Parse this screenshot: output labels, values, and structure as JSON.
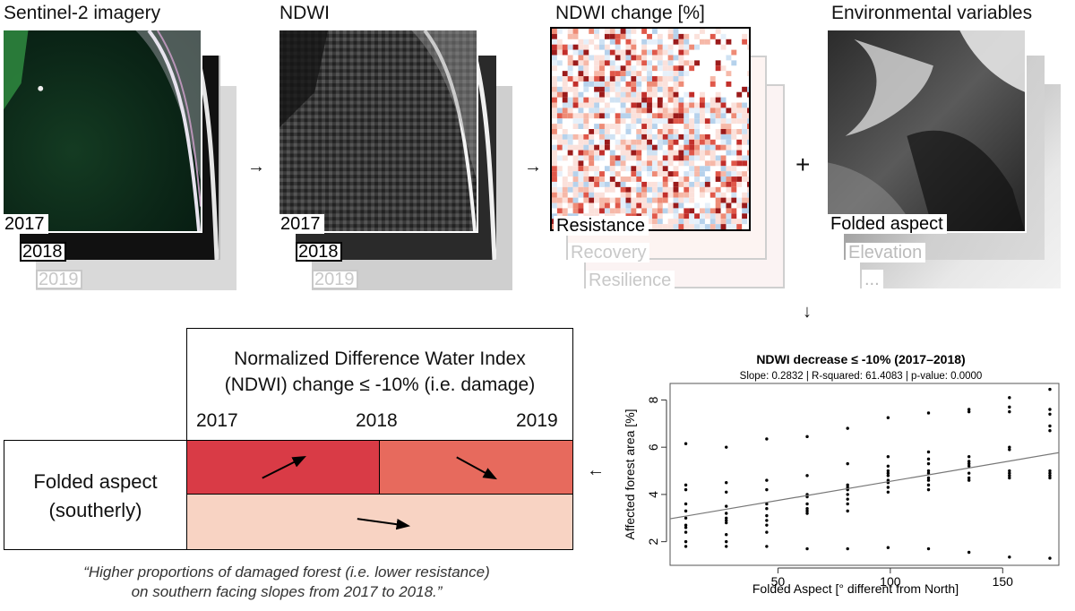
{
  "panels": {
    "sentinel": {
      "title": "Sentinel-2 imagery",
      "layers": [
        "2017",
        "2018",
        "2019"
      ]
    },
    "ndwi": {
      "title": "NDWI",
      "layers": [
        "2017",
        "2018",
        "2019"
      ]
    },
    "change": {
      "title": "NDWI change [%]",
      "layers": [
        "Resistance",
        "Recovery",
        "Resilience"
      ]
    },
    "env": {
      "title": "Environmental variables",
      "layers": [
        "Folded aspect",
        "Elevation",
        "..."
      ]
    }
  },
  "arrows": {
    "right": "→",
    "plus": "+",
    "down": "↓",
    "left": "←"
  },
  "summary": {
    "title_line1": "Normalized Difference Water Index",
    "title_line2": "(NDWI) change ≤ -10% (i.e. damage)",
    "years": [
      "2017",
      "2018",
      "2019"
    ],
    "row_label_line1": "Folded aspect",
    "row_label_line2": "(southerly)",
    "colors": {
      "dark": "#d93b46",
      "medium": "#e76a5d",
      "light": "#f8d3c3"
    },
    "quote_line1": "“Higher proportions of damaged forest (i.e. lower resistance)",
    "quote_line2": "on southern facing slopes from 2017 to 2018.”"
  },
  "chart_data": {
    "type": "scatter",
    "title": "NDWI decrease ≤ -10% (2017–2018)",
    "subtitle": "Slope: 0.2832 | R-squared: 61.4083 | p-value: 0.0000",
    "xlabel": "Folded Aspect [° different from North]",
    "ylabel": "Affected forest area [%]",
    "xlim": [
      2,
      175
    ],
    "ylim": [
      1,
      8.7
    ],
    "xticks": [
      50,
      100,
      150
    ],
    "yticks": [
      2,
      4,
      6,
      8
    ],
    "trend": {
      "x": [
        2,
        175
      ],
      "y": [
        2.97,
        5.77
      ]
    },
    "x": [
      9,
      9,
      9,
      9,
      9,
      9,
      9,
      9,
      9,
      9,
      9,
      27,
      27,
      27,
      27,
      27,
      27,
      27,
      27,
      27,
      27,
      27,
      45,
      45,
      45,
      45,
      45,
      45,
      45,
      45,
      45,
      45,
      63,
      63,
      63,
      63,
      63,
      63,
      63,
      63,
      63,
      81,
      81,
      81,
      81,
      81,
      81,
      81,
      81,
      81,
      81,
      99,
      99,
      99,
      99,
      99,
      99,
      99,
      99,
      99,
      99,
      99,
      117,
      117,
      117,
      117,
      117,
      117,
      117,
      117,
      117,
      117,
      117,
      135,
      135,
      135,
      135,
      135,
      135,
      135,
      135,
      135,
      135,
      153,
      153,
      153,
      153,
      153,
      153,
      153,
      153,
      153,
      153,
      171,
      171,
      171,
      171,
      171,
      171,
      171,
      171,
      171,
      171
    ],
    "y": [
      6.15,
      4.4,
      4.2,
      3.6,
      3.3,
      3.0,
      2.7,
      2.6,
      2.4,
      2.0,
      1.8,
      6.0,
      4.5,
      4.1,
      3.5,
      3.2,
      3.0,
      2.9,
      2.8,
      2.3,
      2.0,
      1.8,
      6.35,
      4.6,
      4.2,
      3.6,
      3.4,
      3.1,
      2.9,
      2.7,
      2.4,
      1.8,
      6.45,
      4.8,
      4.0,
      3.9,
      3.6,
      3.4,
      3.3,
      3.2,
      1.7,
      6.8,
      5.3,
      4.4,
      4.3,
      4.2,
      4.0,
      3.8,
      3.6,
      3.3,
      1.7,
      7.25,
      5.6,
      5.2,
      5.0,
      4.9,
      4.8,
      4.6,
      4.5,
      4.3,
      4.1,
      1.75,
      7.45,
      5.8,
      5.5,
      5.3,
      5.0,
      4.9,
      4.7,
      4.6,
      4.4,
      4.2,
      1.7,
      7.6,
      7.5,
      5.6,
      5.4,
      5.3,
      5.2,
      4.9,
      4.7,
      4.6,
      1.55,
      8.1,
      7.7,
      7.5,
      6.0,
      5.9,
      5.0,
      4.9,
      4.8,
      4.7,
      1.35,
      8.45,
      7.6,
      7.4,
      6.9,
      6.7,
      5.0,
      4.9,
      4.8,
      4.7,
      1.3
    ]
  }
}
